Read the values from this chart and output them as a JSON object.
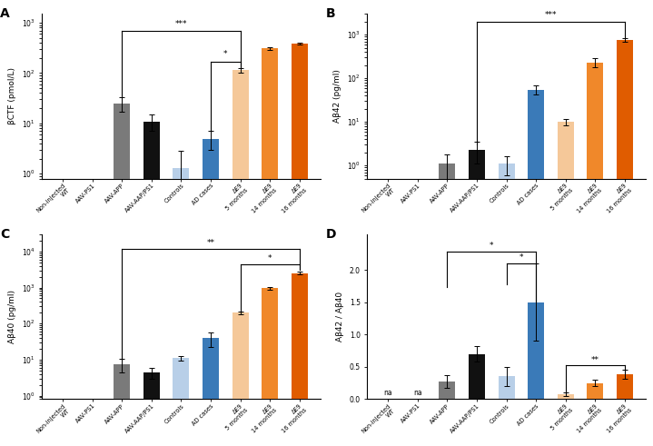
{
  "categories": [
    "Non-injected\nWT",
    "AAV-PS1",
    "AAV-APP",
    "AAV-AAP/PS1",
    "Controls",
    "AD cases",
    "ΔE9\n5 months",
    "ΔE9\n14 months",
    "ΔE9\n16 months"
  ],
  "A_values": [
    null,
    null,
    25.0,
    11.0,
    1.3,
    5.0,
    115.0,
    310.0,
    380.0
  ],
  "A_errors": [
    null,
    null,
    8.0,
    4.0,
    1.5,
    2.0,
    12.0,
    18.0,
    18.0
  ],
  "B_values": [
    null,
    null,
    1.1,
    2.3,
    1.1,
    55.0,
    10.0,
    230.0,
    750.0
  ],
  "B_errors": [
    null,
    null,
    0.7,
    1.2,
    0.5,
    12.0,
    1.5,
    55.0,
    75.0
  ],
  "C_values": [
    null,
    null,
    7.5,
    4.5,
    11.0,
    40.0,
    200.0,
    950.0,
    2500.0
  ],
  "C_errors": [
    null,
    null,
    3.0,
    1.5,
    1.5,
    18.0,
    20.0,
    80.0,
    200.0
  ],
  "D_values": [
    null,
    null,
    0.27,
    0.7,
    0.35,
    1.5,
    0.07,
    0.25,
    0.38
  ],
  "D_errors": [
    null,
    null,
    0.1,
    0.12,
    0.15,
    0.6,
    0.03,
    0.05,
    0.07
  ],
  "bar_colors": [
    "#7a7a7a",
    "#7a7a7a",
    "#7a7a7a",
    "#111111",
    "#b8cfe8",
    "#3a7ab8",
    "#f5c899",
    "#f0882a",
    "#e05c00"
  ],
  "panel_labels": [
    "A",
    "B",
    "C",
    "D"
  ],
  "ylabel_A": "βCTF (pmol/L)",
  "ylabel_B": "Aβ42 (pg/ml)",
  "ylabel_C": "Aβ40 (pg/ml)",
  "ylabel_D": "Aβ42 / Aβ40",
  "tick_labels": [
    "Non-injected\nWT",
    "AAV-PS1",
    "AAV-APP",
    "AAV-AAP/PS1",
    "Controls",
    "AD cases",
    "ΔE9\n5 months",
    "ΔE9\n14 months",
    "ΔE9\n16 months"
  ]
}
